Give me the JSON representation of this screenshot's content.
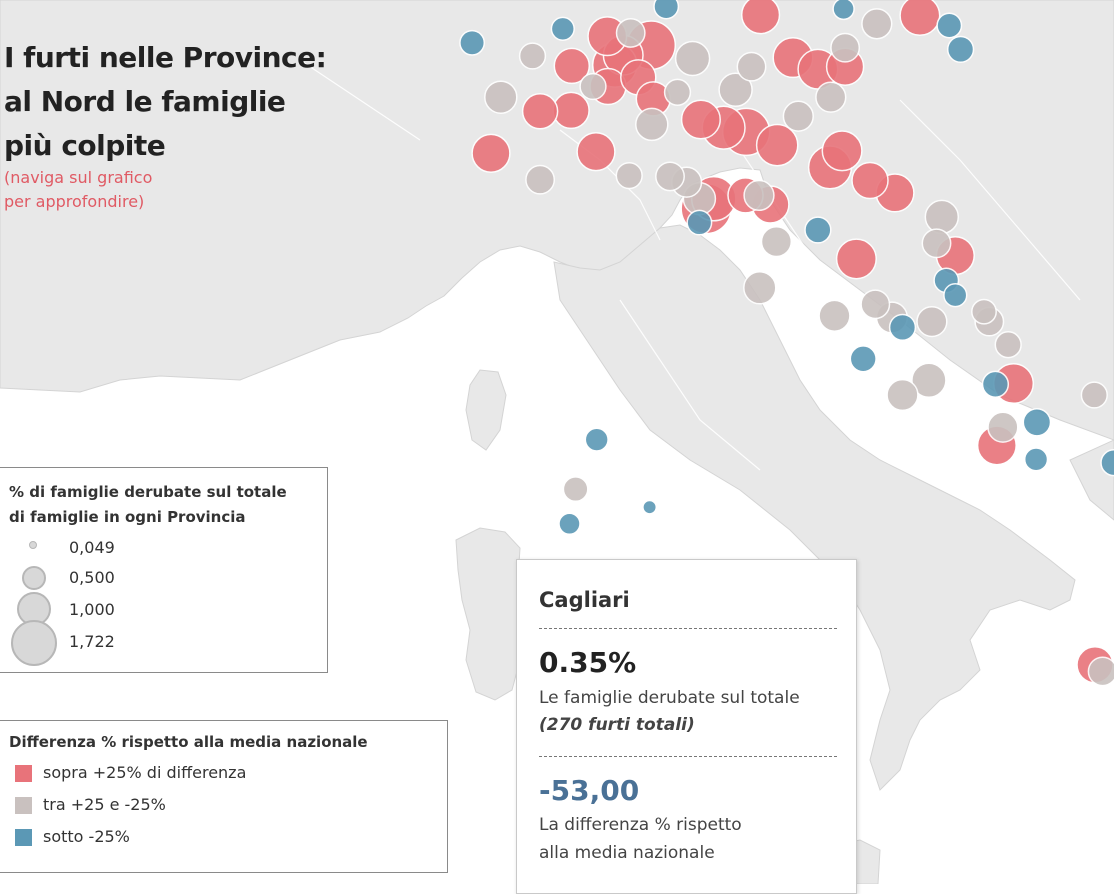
{
  "title": {
    "line1": "I furti nelle Province:",
    "line2": "al Nord le famiglie",
    "line3": "più colpite"
  },
  "subtitle": {
    "line1": "(naviga sul grafico",
    "line2": "per approfondire)"
  },
  "size_legend": {
    "title_line1": "% di famiglie derubate sul totale",
    "title_line2": "di famiglie in ogni Provincia",
    "items": [
      {
        "label": "0,049",
        "value": 0.049
      },
      {
        "label": "0,500",
        "value": 0.5
      },
      {
        "label": "1,000",
        "value": 1.0
      },
      {
        "label": "1,722",
        "value": 1.722
      }
    ]
  },
  "color_legend": {
    "title": "Differenza % rispetto alla media nazionale",
    "items": [
      {
        "label": "sopra +25% di differenza",
        "color": "#e8737a"
      },
      {
        "label": "tra +25 e -25%",
        "color": "#c9c1bf"
      },
      {
        "label": "sotto -25%",
        "color": "#5b98b5"
      }
    ]
  },
  "tooltip": {
    "province": "Cagliari",
    "value": "0.35%",
    "value_label": "Le famiglie derubate sul totale",
    "thefts": "(270 furti totali)",
    "difference": "-53,00",
    "difference_label_line1": "La differenza % rispetto",
    "difference_label_line2": "alla media nazionale"
  },
  "colors": {
    "above": "#e8737a",
    "between": "#c9c1bf",
    "below": "#5b98b5",
    "land": "#e8e8e8",
    "sea": "#ffffff",
    "highlight": "#222222"
  },
  "map_data": {
    "marks": [
      {
        "lon": 7.3,
        "lat": 45.73,
        "cat": "below",
        "v": 0.3
      },
      {
        "lon": 8.1,
        "lat": 45.57,
        "cat": "between",
        "v": 0.35
      },
      {
        "lon": 8.5,
        "lat": 45.9,
        "cat": "below",
        "v": 0.25
      },
      {
        "lon": 8.62,
        "lat": 45.45,
        "cat": "above",
        "v": 0.75
      },
      {
        "lon": 7.68,
        "lat": 45.07,
        "cat": "between",
        "v": 0.6
      },
      {
        "lon": 8.2,
        "lat": 44.9,
        "cat": "above",
        "v": 0.75
      },
      {
        "lon": 7.55,
        "lat": 44.39,
        "cat": "above",
        "v": 0.9
      },
      {
        "lon": 8.61,
        "lat": 44.91,
        "cat": "above",
        "v": 0.8
      },
      {
        "lon": 8.9,
        "lat": 45.2,
        "cat": "between",
        "v": 0.35
      },
      {
        "lon": 9.09,
        "lat": 45.81,
        "cat": "above",
        "v": 0.95
      },
      {
        "lon": 9.19,
        "lat": 45.46,
        "cat": "above",
        "v": 1.3
      },
      {
        "lon": 9.4,
        "lat": 45.85,
        "cat": "between",
        "v": 0.45
      },
      {
        "lon": 9.87,
        "lat": 46.17,
        "cat": "below",
        "v": 0.3
      },
      {
        "lon": 9.3,
        "lat": 45.58,
        "cat": "above",
        "v": 1.0
      },
      {
        "lon": 9.67,
        "lat": 45.7,
        "cat": "above",
        "v": 1.6
      },
      {
        "lon": 10.22,
        "lat": 45.54,
        "cat": "between",
        "v": 0.7
      },
      {
        "lon": 9.5,
        "lat": 45.31,
        "cat": "above",
        "v": 0.75
      },
      {
        "lon": 9.7,
        "lat": 45.05,
        "cat": "above",
        "v": 0.7
      },
      {
        "lon": 10.02,
        "lat": 45.13,
        "cat": "between",
        "v": 0.35
      },
      {
        "lon": 10.79,
        "lat": 45.16,
        "cat": "between",
        "v": 0.65
      },
      {
        "lon": 11.14,
        "lat": 46.5,
        "cat": "below",
        "v": 0.3
      },
      {
        "lon": 11.12,
        "lat": 46.07,
        "cat": "above",
        "v": 0.9
      },
      {
        "lon": 11.0,
        "lat": 45.44,
        "cat": "between",
        "v": 0.45
      },
      {
        "lon": 11.55,
        "lat": 45.55,
        "cat": "above",
        "v": 1.0
      },
      {
        "lon": 11.88,
        "lat": 45.41,
        "cat": "above",
        "v": 1.0
      },
      {
        "lon": 12.05,
        "lat": 45.07,
        "cat": "between",
        "v": 0.5
      },
      {
        "lon": 12.24,
        "lat": 45.44,
        "cat": "above",
        "v": 0.85
      },
      {
        "lon": 12.24,
        "lat": 45.67,
        "cat": "between",
        "v": 0.45
      },
      {
        "lon": 12.22,
        "lat": 46.14,
        "cat": "below",
        "v": 0.2
      },
      {
        "lon": 12.66,
        "lat": 45.96,
        "cat": "between",
        "v": 0.5
      },
      {
        "lon": 13.23,
        "lat": 46.06,
        "cat": "above",
        "v": 1.0
      },
      {
        "lon": 13.62,
        "lat": 45.94,
        "cat": "below",
        "v": 0.3
      },
      {
        "lon": 13.77,
        "lat": 45.65,
        "cat": "below",
        "v": 0.35
      },
      {
        "lon": 9.1,
        "lat": 45.2,
        "cat": "above",
        "v": 0.8
      },
      {
        "lon": 9.68,
        "lat": 44.74,
        "cat": "between",
        "v": 0.6
      },
      {
        "lon": 10.33,
        "lat": 44.8,
        "cat": "above",
        "v": 0.95
      },
      {
        "lon": 10.63,
        "lat": 44.7,
        "cat": "above",
        "v": 1.2
      },
      {
        "lon": 10.93,
        "lat": 44.65,
        "cat": "above",
        "v": 1.5
      },
      {
        "lon": 11.34,
        "lat": 44.49,
        "cat": "above",
        "v": 1.1
      },
      {
        "lon": 11.62,
        "lat": 44.84,
        "cat": "between",
        "v": 0.5
      },
      {
        "lon": 12.2,
        "lat": 44.42,
        "cat": "above",
        "v": 1.0
      },
      {
        "lon": 12.04,
        "lat": 44.22,
        "cat": "above",
        "v": 1.2
      },
      {
        "lon": 12.57,
        "lat": 44.06,
        "cat": "above",
        "v": 0.8
      },
      {
        "lon": 12.9,
        "lat": 43.91,
        "cat": "above",
        "v": 0.9
      },
      {
        "lon": 8.94,
        "lat": 44.41,
        "cat": "above",
        "v": 0.9
      },
      {
        "lon": 8.2,
        "lat": 44.07,
        "cat": "between",
        "v": 0.45
      },
      {
        "lon": 9.38,
        "lat": 44.12,
        "cat": "between",
        "v": 0.35
      },
      {
        "lon": 9.92,
        "lat": 44.11,
        "cat": "between",
        "v": 0.45
      },
      {
        "lon": 10.14,
        "lat": 44.04,
        "cat": "between",
        "v": 0.5
      },
      {
        "lon": 10.31,
        "lat": 43.84,
        "cat": "between",
        "v": 0.6
      },
      {
        "lon": 10.4,
        "lat": 43.72,
        "cat": "above",
        "v": 1.72
      },
      {
        "lon": 10.5,
        "lat": 43.84,
        "cat": "above",
        "v": 1.3
      },
      {
        "lon": 10.92,
        "lat": 43.88,
        "cat": "above",
        "v": 0.75
      },
      {
        "lon": 11.1,
        "lat": 43.88,
        "cat": "between",
        "v": 0.5
      },
      {
        "lon": 11.25,
        "lat": 43.77,
        "cat": "above",
        "v": 0.85
      },
      {
        "lon": 10.31,
        "lat": 43.55,
        "cat": "below",
        "v": 0.3
      },
      {
        "lon": 11.33,
        "lat": 43.32,
        "cat": "between",
        "v": 0.5
      },
      {
        "lon": 11.88,
        "lat": 43.46,
        "cat": "below",
        "v": 0.35
      },
      {
        "lon": 11.11,
        "lat": 42.76,
        "cat": "between",
        "v": 0.6
      },
      {
        "lon": 12.39,
        "lat": 43.11,
        "cat": "above",
        "v": 1.0
      },
      {
        "lon": 12.64,
        "lat": 42.56,
        "cat": "between",
        "v": 0.45
      },
      {
        "lon": 13.52,
        "lat": 43.62,
        "cat": "between",
        "v": 0.65
      },
      {
        "lon": 13.45,
        "lat": 43.3,
        "cat": "between",
        "v": 0.45
      },
      {
        "lon": 13.7,
        "lat": 43.15,
        "cat": "above",
        "v": 0.9
      },
      {
        "lon": 13.58,
        "lat": 42.85,
        "cat": "below",
        "v": 0.3
      },
      {
        "lon": 13.7,
        "lat": 42.67,
        "cat": "below",
        "v": 0.25
      },
      {
        "lon": 12.1,
        "lat": 42.42,
        "cat": "between",
        "v": 0.55
      },
      {
        "lon": 12.86,
        "lat": 42.4,
        "cat": "between",
        "v": 0.55
      },
      {
        "lon": 13.0,
        "lat": 42.28,
        "cat": "below",
        "v": 0.35
      },
      {
        "lon": 13.39,
        "lat": 42.35,
        "cat": "between",
        "v": 0.5
      },
      {
        "lon": 14.15,
        "lat": 42.35,
        "cat": "between",
        "v": 0.45
      },
      {
        "lon": 14.08,
        "lat": 42.47,
        "cat": "between",
        "v": 0.3
      },
      {
        "lon": 14.4,
        "lat": 42.07,
        "cat": "between",
        "v": 0.35
      },
      {
        "lon": 12.48,
        "lat": 41.9,
        "cat": "below",
        "v": 0.35
      },
      {
        "lon": 13.35,
        "lat": 41.64,
        "cat": "between",
        "v": 0.7
      },
      {
        "lon": 13.0,
        "lat": 41.46,
        "cat": "between",
        "v": 0.55
      },
      {
        "lon": 14.47,
        "lat": 41.6,
        "cat": "above",
        "v": 1.0
      },
      {
        "lon": 14.23,
        "lat": 41.59,
        "cat": "below",
        "v": 0.35
      },
      {
        "lon": 14.33,
        "lat": 41.07,
        "cat": "between",
        "v": 0.5
      },
      {
        "lon": 14.25,
        "lat": 40.85,
        "cat": "above",
        "v": 0.95
      },
      {
        "lon": 14.78,
        "lat": 41.13,
        "cat": "below",
        "v": 0.4
      },
      {
        "lon": 14.77,
        "lat": 40.68,
        "cat": "below",
        "v": 0.25
      },
      {
        "lon": 15.54,
        "lat": 41.46,
        "cat": "between",
        "v": 0.35
      },
      {
        "lon": 16.27,
        "lat": 41.31,
        "cat": "below",
        "v": 0.25
      },
      {
        "lon": 16.4,
        "lat": 41.2,
        "cat": "below",
        "v": 0.2
      },
      {
        "lon": 16.87,
        "lat": 41.12,
        "cat": "above",
        "v": 0.9
      },
      {
        "lon": 15.8,
        "lat": 40.64,
        "cat": "below",
        "v": 0.35
      },
      {
        "lon": 16.6,
        "lat": 40.67,
        "cat": "between",
        "v": 0.7
      },
      {
        "lon": 17.24,
        "lat": 40.47,
        "cat": "between",
        "v": 0.4
      },
      {
        "lon": 17.94,
        "lat": 40.63,
        "cat": "below",
        "v": 0.35
      },
      {
        "lon": 18.17,
        "lat": 40.35,
        "cat": "between",
        "v": 0.65
      },
      {
        "lon": 8.95,
        "lat": 40.92,
        "cat": "below",
        "v": 0.25
      },
      {
        "lon": 8.67,
        "lat": 40.32,
        "cat": "between",
        "v": 0.3
      },
      {
        "lon": 8.59,
        "lat": 39.9,
        "cat": "below",
        "v": 0.2
      },
      {
        "lon": 9.11,
        "lat": 39.22,
        "cat": "below",
        "v": 0.35
      },
      {
        "lon": 9.65,
        "lat": 40.1,
        "cat": "below",
        "v": 0.05
      },
      {
        "lon": 16.25,
        "lat": 39.3,
        "cat": "below",
        "v": 0.1
      },
      {
        "lon": 17.12,
        "lat": 39.08,
        "cat": "below",
        "v": 0.1
      },
      {
        "lon": 16.6,
        "lat": 38.9,
        "cat": "below",
        "v": 0.3
      },
      {
        "lon": 16.1,
        "lat": 38.68,
        "cat": "below",
        "v": 0.35
      },
      {
        "lon": 16.05,
        "lat": 38.6,
        "cat": "below",
        "v": 0.3
      },
      {
        "lon": 15.65,
        "lat": 38.11,
        "cat": "between",
        "v": 0.45
      },
      {
        "lon": 15.55,
        "lat": 38.19,
        "cat": "above",
        "v": 0.8
      }
    ],
    "highlighted_province": "Cagliari"
  }
}
